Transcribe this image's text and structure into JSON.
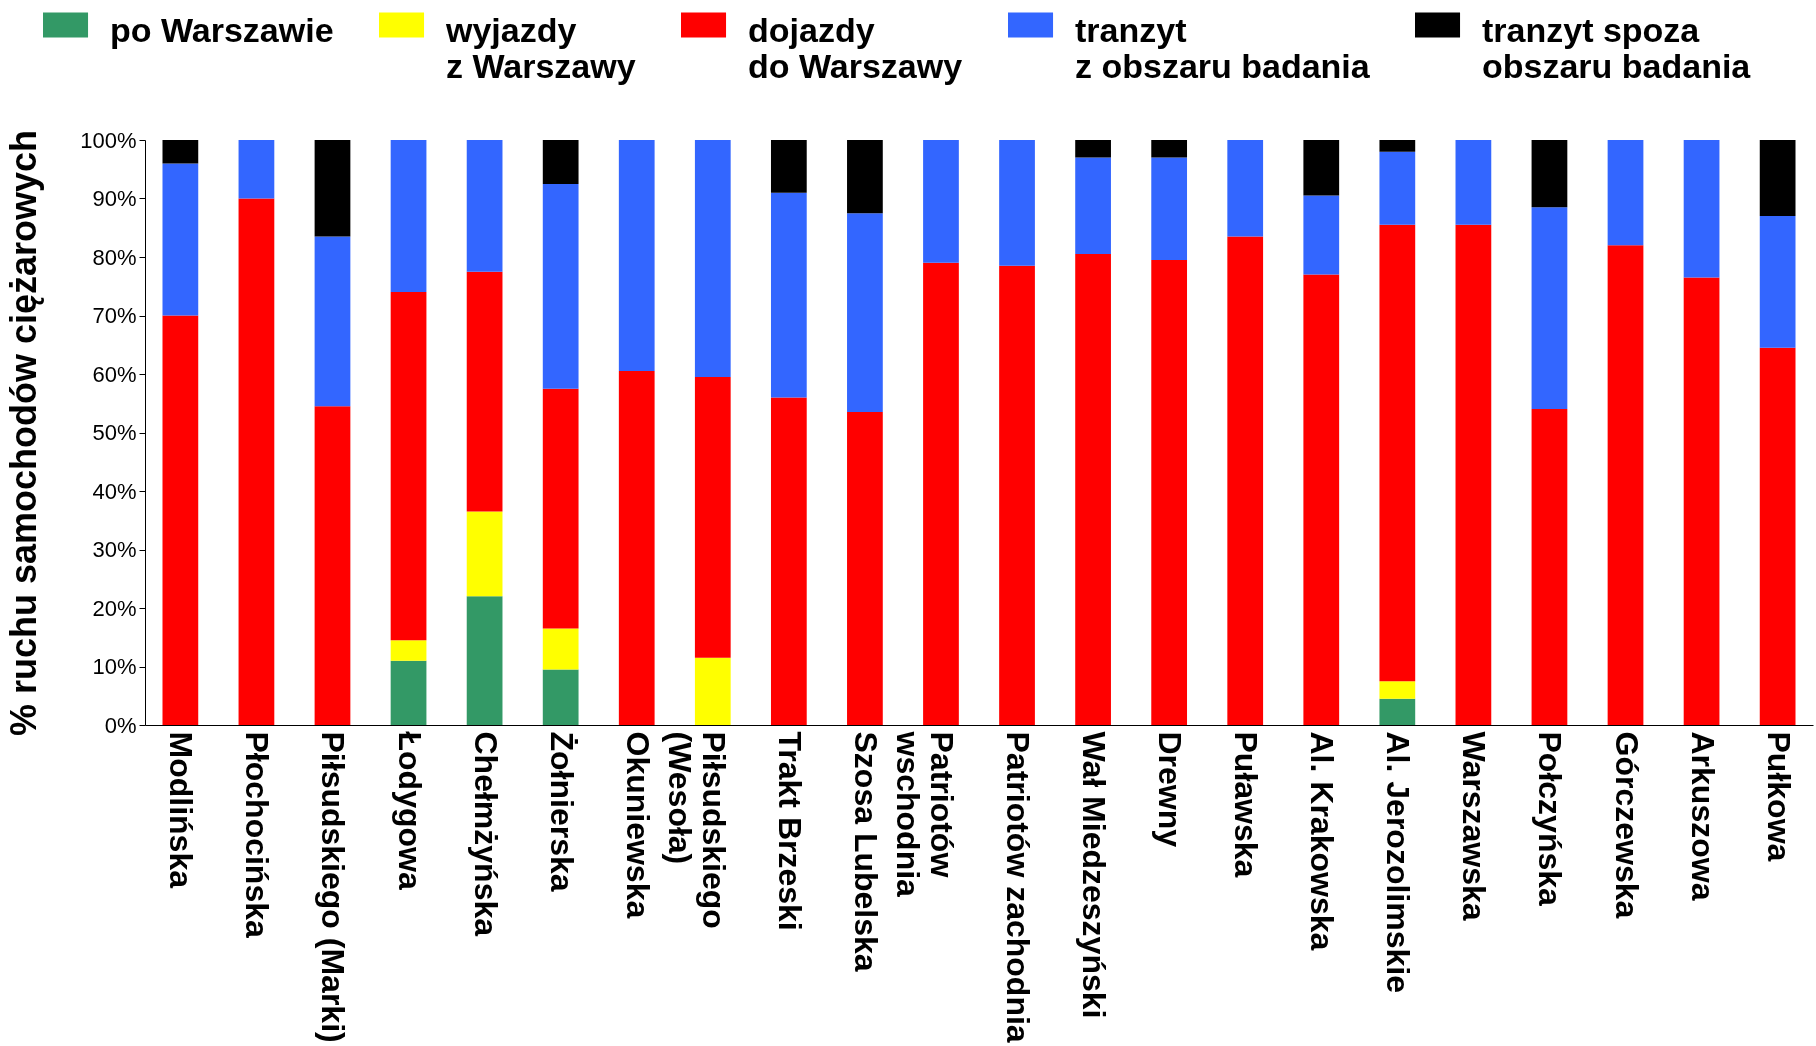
{
  "chart_data": {
    "type": "bar",
    "stacked": true,
    "ylabel": "% ruchu samochodów ciężarowych",
    "categories": [
      "Modlińska",
      "Płochocińska",
      "Piłsudskiego (Marki)",
      "Łodygowa",
      "Chełmżyńska",
      "Żołnierska",
      "Okuniewska",
      "Piłsudskiego\n(Wesoła)",
      "Trakt Brzeski",
      "Szosa Lubelska",
      "Patriotów\nwschodnia",
      "Patriotów zachodnia",
      "Wał Miedzeszyński",
      "Drewny",
      "Puławska",
      "Al. Krakowska",
      "Al. Jerozolimskie",
      "Warszawska",
      "Połczyńska",
      "Górczewska",
      "Arkuszowa",
      "Pułkowa"
    ],
    "series": [
      {
        "name": "po Warszawie",
        "color": "#339966",
        "values": [
          null,
          null,
          null,
          11,
          22,
          9.5,
          null,
          null,
          null,
          null,
          null,
          null,
          null,
          null,
          null,
          null,
          4.5,
          null,
          null,
          null,
          null,
          null
        ]
      },
      {
        "name": "wyjazdy\nz Warszawy",
        "color": "#ffff00",
        "values": [
          null,
          null,
          null,
          3.5,
          14.5,
          7,
          null,
          11.5,
          null,
          null,
          null,
          null,
          null,
          null,
          null,
          null,
          3,
          null,
          null,
          null,
          null,
          null
        ]
      },
      {
        "name": "dojazdy\ndo Warszawy",
        "color": "#ff0000",
        "values": [
          70,
          90,
          54.5,
          59.5,
          41,
          41,
          60.5,
          48,
          56,
          53.5,
          79,
          78.5,
          80.5,
          79.5,
          83.5,
          77,
          78,
          85.5,
          54,
          82,
          76.5,
          64.5
        ]
      },
      {
        "name": "tranzyt\nz obszaru badania",
        "color": "#3366ff",
        "values": [
          26,
          10,
          29,
          26,
          22.5,
          35,
          39.5,
          40.5,
          35,
          34,
          21,
          21.5,
          16.5,
          17.5,
          16.5,
          13.5,
          12.5,
          14.5,
          34.5,
          18,
          23.5,
          22.5
        ]
      },
      {
        "name": "tranzyt spoza\nobszaru badania",
        "color": "#000000",
        "values": [
          4,
          null,
          16.5,
          null,
          null,
          7.5,
          null,
          null,
          9,
          12.5,
          null,
          null,
          3,
          3,
          null,
          9.5,
          2,
          null,
          11.5,
          null,
          null,
          13
        ]
      }
    ],
    "ylim": [
      0,
      100
    ],
    "yticks": [
      {
        "value": 0,
        "label": "0%"
      },
      {
        "value": 10,
        "label": "10%"
      },
      {
        "value": 20,
        "label": "20%"
      },
      {
        "value": 30,
        "label": "30%"
      },
      {
        "value": 40,
        "label": "40%"
      },
      {
        "value": 50,
        "label": "50%"
      },
      {
        "value": 60,
        "label": "60%"
      },
      {
        "value": 70,
        "label": "70%"
      },
      {
        "value": 80,
        "label": "80%"
      },
      {
        "value": 90,
        "label": "90%"
      },
      {
        "value": 100,
        "label": "100%"
      }
    ],
    "grid": false,
    "legend": "top"
  }
}
